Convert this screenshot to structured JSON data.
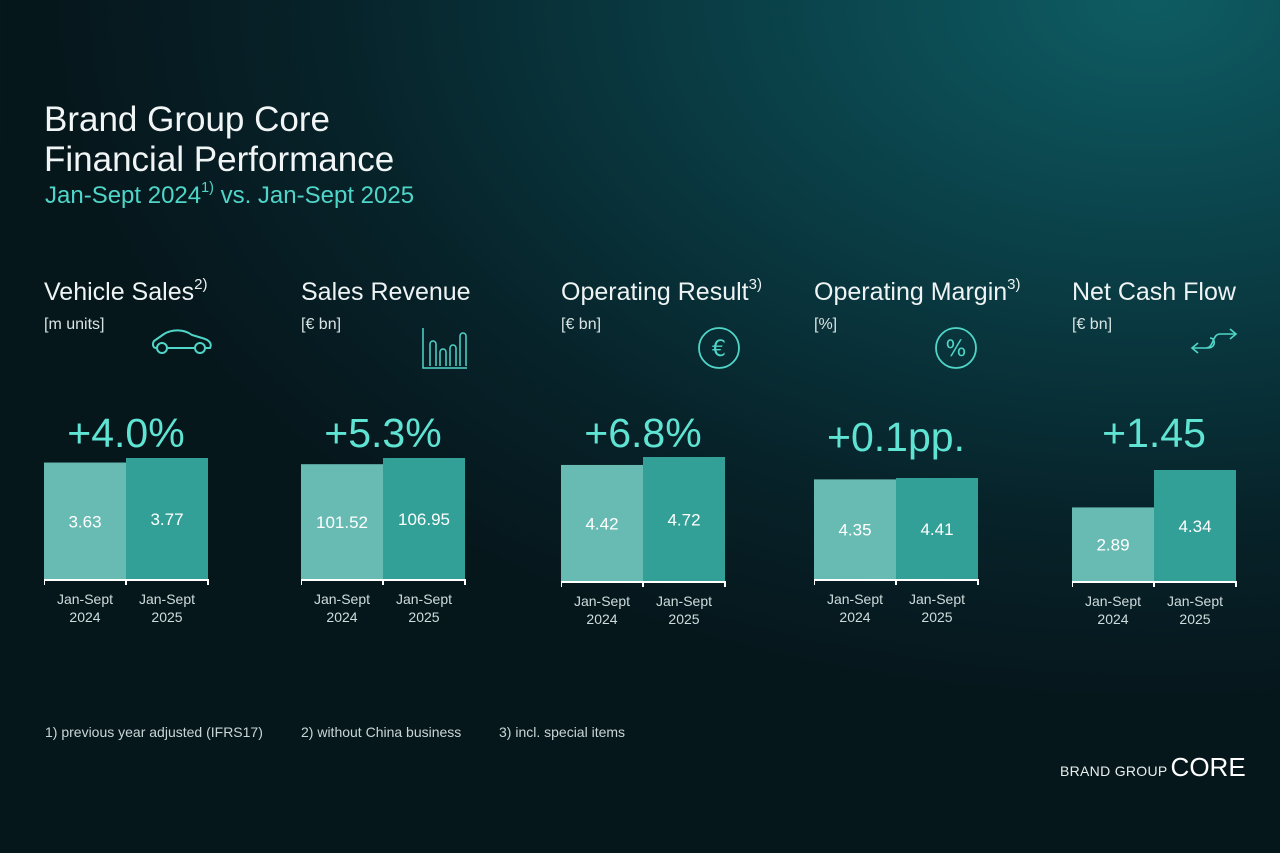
{
  "header": {
    "title": "Brand Group Core",
    "subtitle": "Financial Performance",
    "period": "Jan-Sept 2024",
    "period_note": "1)",
    "period_rest": " vs. Jan-Sept 2025"
  },
  "colors": {
    "bar_2024": "#68bbb3",
    "bar_2025": "#33a097",
    "accent": "#5fe3d3",
    "background": "#0a3d45"
  },
  "chart_data": [
    {
      "type": "bar",
      "title": "Vehicle Sales",
      "note": "2)",
      "unit": "[m units]",
      "icon": "car-icon",
      "change": "+4.0%",
      "categories": [
        "Jan-Sept 2024",
        "Jan-Sept 2025"
      ],
      "labels": [
        [
          "Jan-Sept",
          "2024"
        ],
        [
          "Jan-Sept",
          "2025"
        ]
      ],
      "values": [
        3.63,
        3.77
      ],
      "value_labels": [
        "3.63",
        "3.77"
      ]
    },
    {
      "type": "bar",
      "title": "Sales Revenue",
      "note": "",
      "unit": "[€ bn]",
      "icon": "bar-chart-icon",
      "change": "+5.3%",
      "categories": [
        "Jan-Sept 2024",
        "Jan-Sept 2025"
      ],
      "labels": [
        [
          "Jan-Sept",
          "2024"
        ],
        [
          "Jan-Sept",
          "2025"
        ]
      ],
      "values": [
        101.52,
        106.95
      ],
      "value_labels": [
        "101.52",
        "106.95"
      ]
    },
    {
      "type": "bar",
      "title": "Operating Result",
      "note": "3)",
      "unit": "[€ bn]",
      "icon": "euro-icon",
      "change": "+6.8%",
      "categories": [
        "Jan-Sept 2024",
        "Jan-Sept 2025"
      ],
      "labels": [
        [
          "Jan-Sept",
          "2024"
        ],
        [
          "Jan-Sept",
          "2025"
        ]
      ],
      "values": [
        4.42,
        4.72
      ],
      "value_labels": [
        "4.42",
        "4.72"
      ]
    },
    {
      "type": "bar",
      "title": "Operating Margin",
      "note": "3)",
      "unit": "[%]",
      "icon": "percent-icon",
      "change": "+0.1pp.",
      "categories": [
        "Jan-Sept 2024",
        "Jan-Sept 2025"
      ],
      "labels": [
        [
          "Jan-Sept",
          "2024"
        ],
        [
          "Jan-Sept",
          "2025"
        ]
      ],
      "values": [
        4.35,
        4.41
      ],
      "value_labels": [
        "4.35",
        "4.41"
      ]
    },
    {
      "type": "bar",
      "title": "Net Cash Flow",
      "note": "",
      "unit": "[€ bn]",
      "icon": "cash-flow-arrows-icon",
      "change": "+1.45",
      "categories": [
        "Jan-Sept 2024",
        "Jan-Sept 2025"
      ],
      "labels": [
        [
          "Jan-Sept",
          "2024"
        ],
        [
          "Jan-Sept",
          "2025"
        ]
      ],
      "values": [
        2.89,
        4.34
      ],
      "value_labels": [
        "2.89",
        "4.34"
      ]
    }
  ],
  "footnotes": [
    "1) previous year adjusted (IFRS17)",
    "2) without China business",
    "3) incl. special items"
  ],
  "logo": {
    "small": "BRAND GROUP",
    "large": "CORE"
  }
}
